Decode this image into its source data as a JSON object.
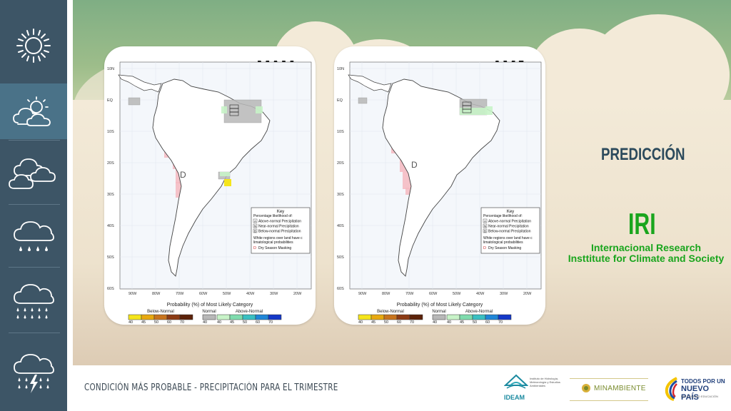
{
  "sidebar": {
    "items": [
      {
        "icon": "sun-icon",
        "active": false
      },
      {
        "icon": "partly-cloudy-icon",
        "active": true
      },
      {
        "icon": "clouds-icon",
        "active": false
      },
      {
        "icon": "light-rain-icon",
        "active": false
      },
      {
        "icon": "heavy-rain-icon",
        "active": false
      },
      {
        "icon": "thunderstorm-icon",
        "active": false
      }
    ]
  },
  "main": {
    "heading": "PREDICCIÓN",
    "org_acronym": "IRI",
    "org_name_line1": "Internacional Research",
    "org_name_line2": "Insttitute for Climate and Society"
  },
  "maps": [
    {
      "label": "MAM"
    },
    {
      "label": "AMJ"
    }
  ],
  "map_common": {
    "lat_labels": [
      "10N",
      "EQ",
      "10S",
      "20S",
      "30S",
      "40S",
      "50S",
      "60S"
    ],
    "lon_labels": [
      "90W",
      "80W",
      "70W",
      "60W",
      "50W",
      "40W",
      "30W",
      "20W"
    ],
    "colorbar_title": "Probability (%) of Most Likely Category",
    "below_label": "Below-Normal",
    "normal_label": "Normal",
    "above_label": "Above-Normal",
    "below_ticks": [
      "40",
      "45",
      "50",
      "60",
      "70"
    ],
    "normal_ticks": [
      "40"
    ],
    "above_ticks": [
      "40",
      "45",
      "50",
      "60",
      "70"
    ],
    "colors": {
      "below": [
        "#f5e51b",
        "#e8a90f",
        "#c8741d",
        "#8c3b14",
        "#5c2209"
      ],
      "normal": [
        "#b8b8b8"
      ],
      "above": [
        "#c8f3c8",
        "#7fdcae",
        "#39c0c2",
        "#1f86d8",
        "#1438c8"
      ],
      "dry_mask": "#f4b8bf"
    },
    "key": {
      "title": "Key",
      "subtitle": "Percentage likelihood of:",
      "rows": [
        {
          "code": "A",
          "text": "Above-normal Precipitation"
        },
        {
          "code": "N",
          "text": "Near-normal Precipitation"
        },
        {
          "code": "B",
          "text": "Below-normal Precipitation"
        }
      ],
      "note": "White regions over land have climatological probabilities",
      "dry_code": "D",
      "dry_text": "Dry Season Masking"
    },
    "dry_marker": "D"
  },
  "footer": {
    "title": "CONDICIÓN MÁS PROBABLE - PRECIPITACIÓN PARA EL TRIMESTRE",
    "logos": [
      {
        "name": "IDEAM",
        "text": "IDEAM",
        "sub": "Instituto de Hidrología, Meteorología y Estudios Ambientales"
      },
      {
        "name": "MINAMBIENTE",
        "text": "MINAMBIENTE"
      },
      {
        "name": "TODOS POR UN NUEVO PAÍS",
        "line1": "TODOS POR UN",
        "line2": "NUEVO PAÍS",
        "line3": "PAZ  EQUIDAD  EDUCACIÓN"
      }
    ]
  }
}
